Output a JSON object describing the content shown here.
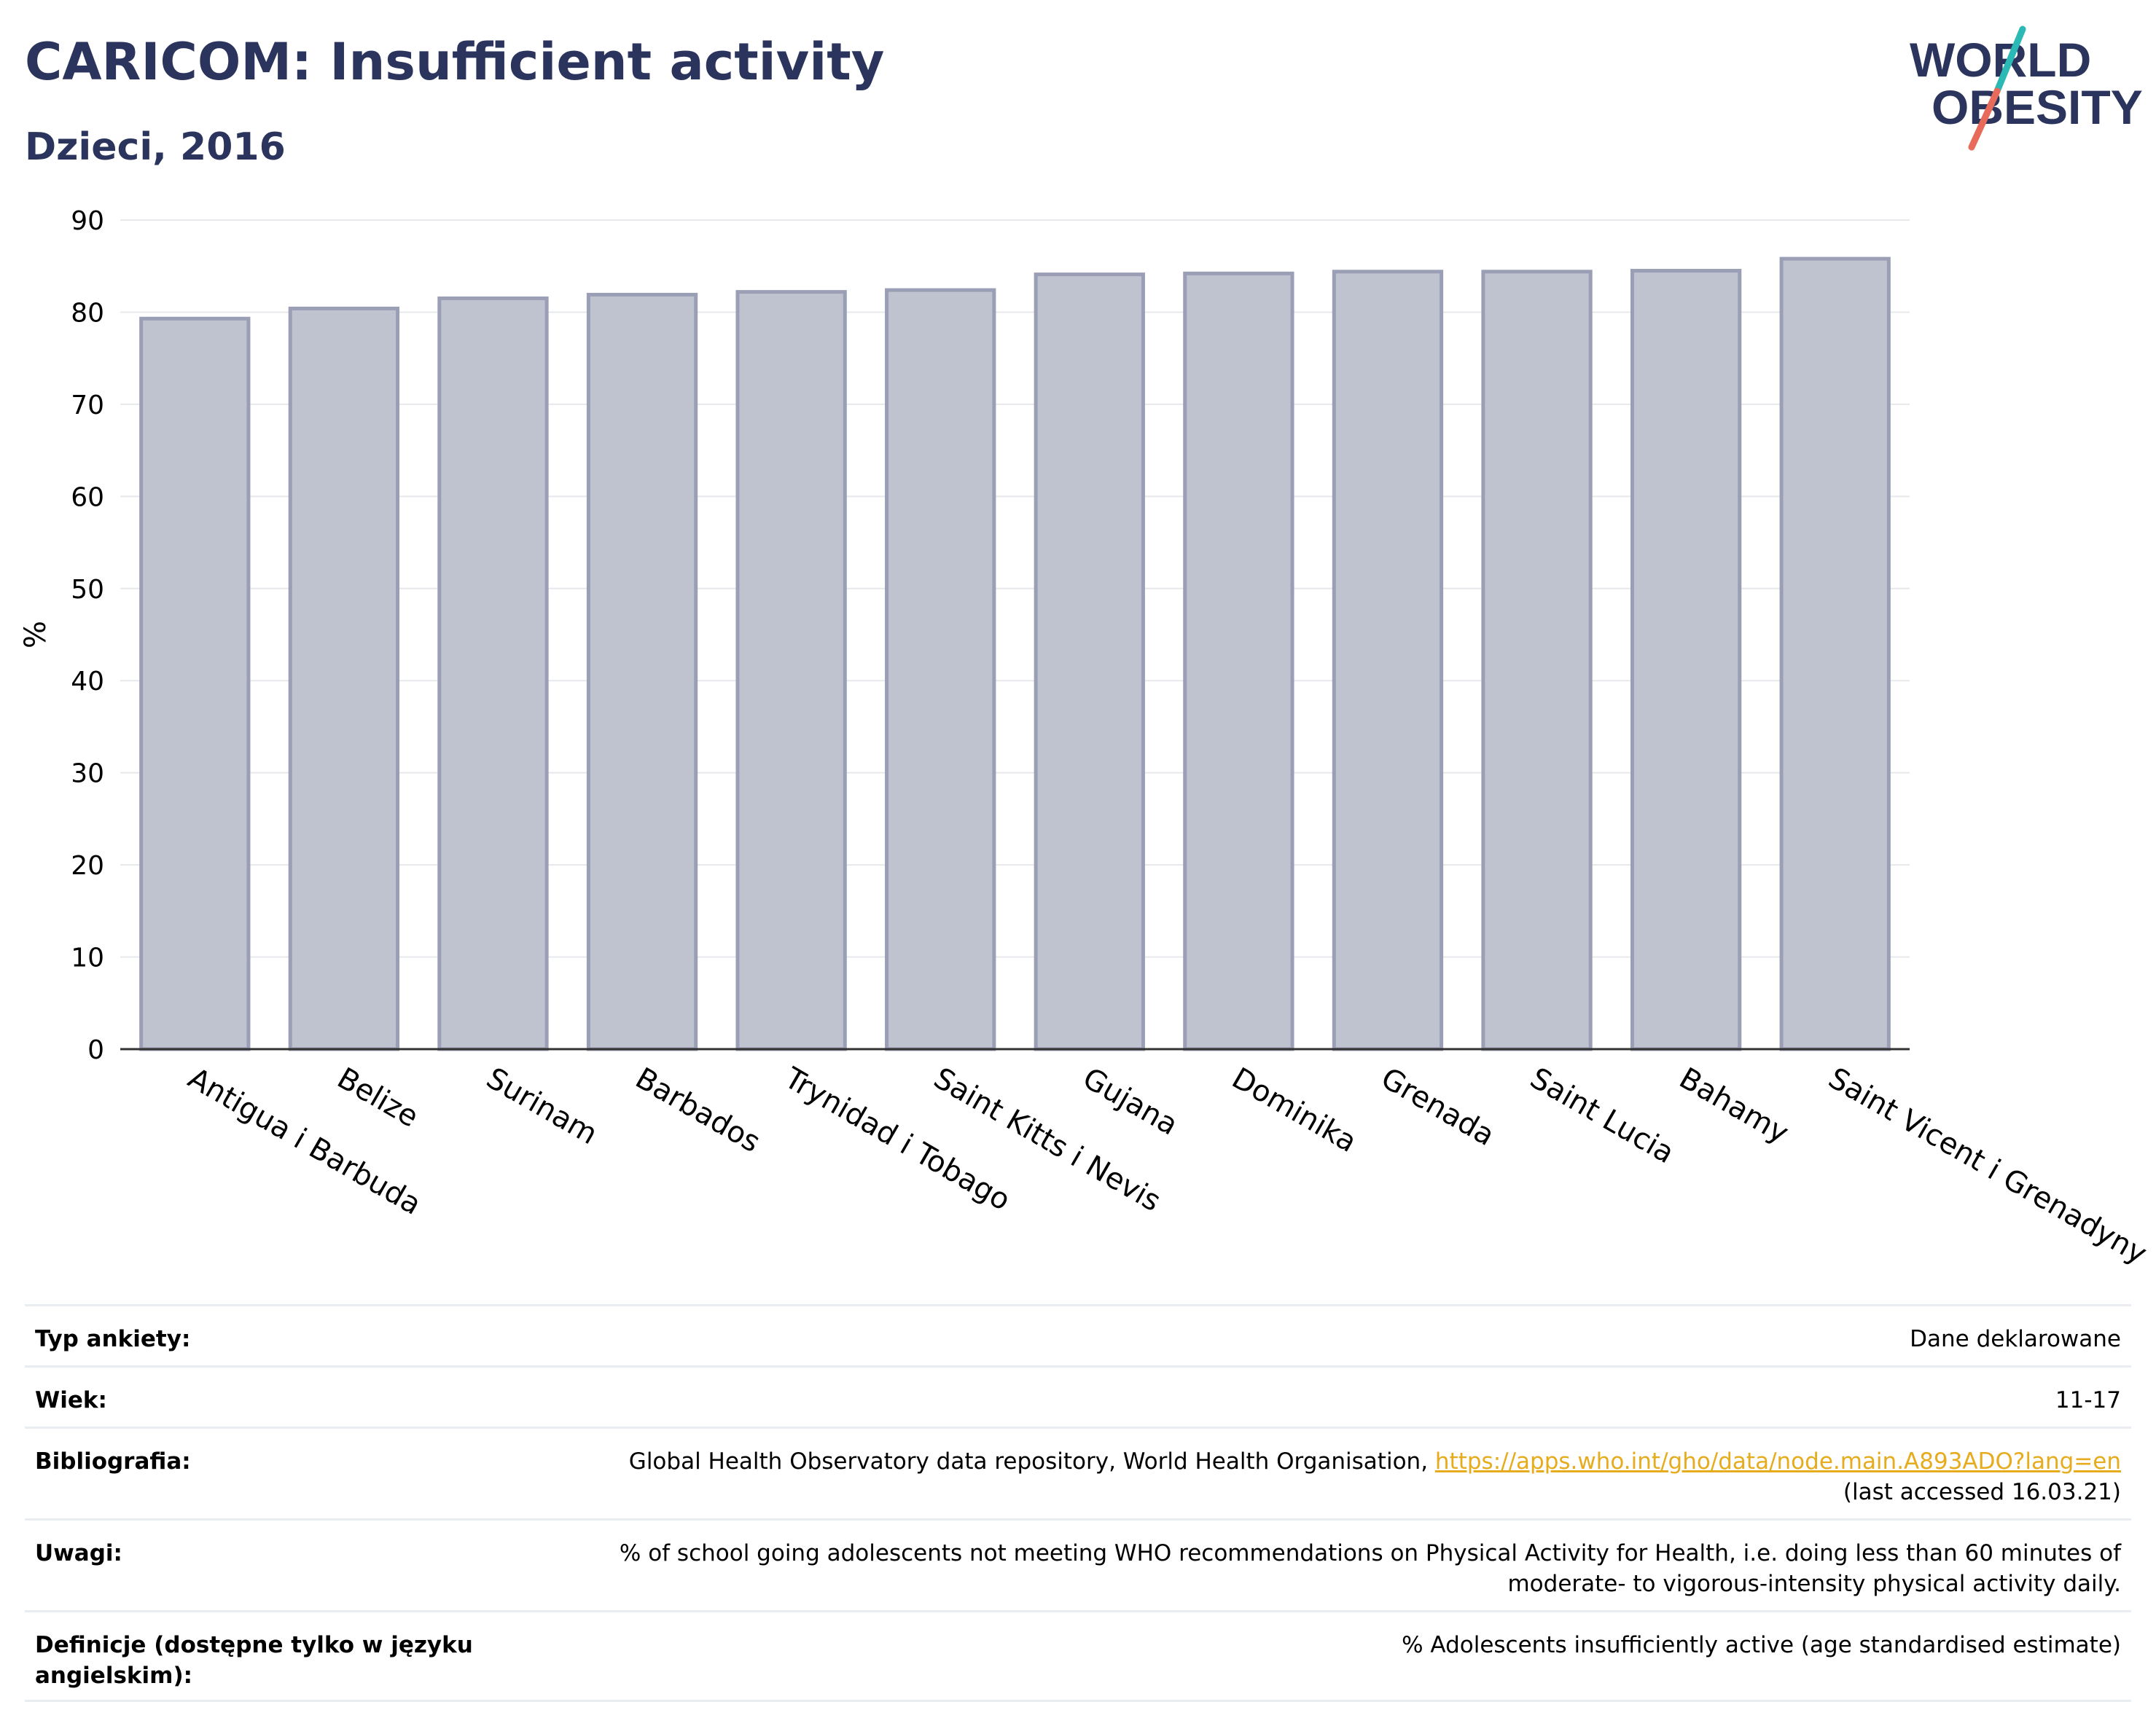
{
  "header": {
    "title": "CARICOM: Insufficient activity",
    "subtitle": "Dzieci, 2016"
  },
  "logo": {
    "line1": "WORLD",
    "line2": "OBESITY",
    "colors": {
      "text": "#2b345c",
      "slash_top": "#2bb9b5",
      "slash_bottom": "#e86a5a"
    }
  },
  "colors": {
    "bar_fill": "#bfc2cf",
    "bar_stroke": "#9a9fb6",
    "title": "#2b345c",
    "grid": "#e6e8ec",
    "link": "#e6ac1e"
  },
  "chart_data": {
    "type": "bar",
    "title": "",
    "xlabel": "",
    "ylabel": "%",
    "ylim": [
      0,
      90
    ],
    "yticks": [
      0,
      10,
      20,
      30,
      40,
      50,
      60,
      70,
      80,
      90
    ],
    "grid": true,
    "categories": [
      "Antigua i Barbuda",
      "Belize",
      "Surinam",
      "Barbados",
      "Trynidad i Tobago",
      "Saint Kitts i Nevis",
      "Gujana",
      "Dominika",
      "Grenada",
      "Saint Lucia",
      "Bahamy",
      "Saint Vicent i Grenadyny"
    ],
    "values": [
      79.3,
      80.4,
      81.5,
      81.9,
      82.2,
      82.4,
      84.1,
      84.2,
      84.4,
      84.4,
      84.5,
      85.8
    ]
  },
  "info": {
    "survey_label": "Typ ankiety:",
    "survey_value": "Dane deklarowane",
    "age_label": "Wiek:",
    "age_value": "11-17",
    "bib_label": "Bibliografia:",
    "bib_text": "Global Health Observatory data repository, World Health Organisation,",
    "bib_link": "https://apps.who.int/gho/data/node.main.A893ADO?lang=en",
    "bib_accessed": "(last accessed 16.03.21)",
    "notes_label": "Uwagi:",
    "notes_line1": "% of school going adolescents not meeting WHO recommendations on Physical Activity for Health, i.e. doing less than 60 minutes of",
    "notes_line2": "moderate- to vigorous-intensity physical activity daily.",
    "def_label": "Definicje (dostępne tylko w języku angielskim):",
    "def_value": "% Adolescents insufficiently active (age standardised estimate)"
  }
}
